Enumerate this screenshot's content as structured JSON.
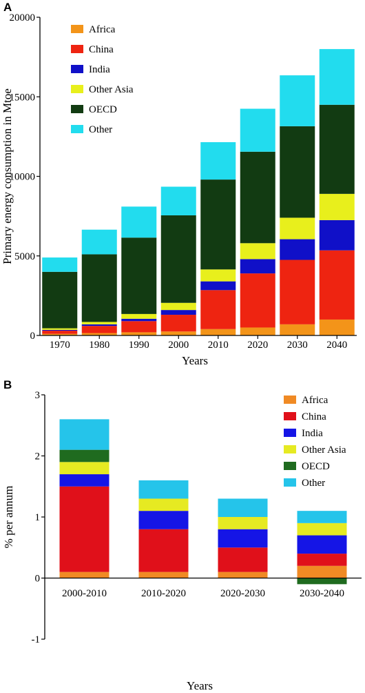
{
  "chart_data": [
    {
      "type": "bar",
      "stacked": true,
      "panel_label": "A",
      "title": "",
      "xlabel": "Years",
      "ylabel": "Primary energy consumption in Mtoe",
      "ylim": [
        0,
        20000
      ],
      "yticks": [
        "0",
        "5000",
        "10000",
        "15000",
        "20000"
      ],
      "categories": [
        "1970",
        "1980",
        "1990",
        "2000",
        "2010",
        "2020",
        "2030",
        "2040"
      ],
      "legend_position": "top-left",
      "series": [
        {
          "name": "Africa",
          "color": "#f39419",
          "values": [
            100,
            150,
            200,
            250,
            400,
            500,
            700,
            1000
          ]
        },
        {
          "name": "China",
          "color": "#ee2411",
          "values": [
            200,
            450,
            700,
            1050,
            2450,
            3400,
            4050,
            4350
          ]
        },
        {
          "name": "India",
          "color": "#1010c8",
          "values": [
            50,
            100,
            150,
            300,
            550,
            900,
            1300,
            1900
          ]
        },
        {
          "name": "Other Asia",
          "color": "#e8ef1c",
          "values": [
            100,
            150,
            300,
            450,
            750,
            1000,
            1350,
            1650
          ]
        },
        {
          "name": "OECD",
          "color": "#123b12",
          "values": [
            3550,
            4250,
            4800,
            5500,
            5650,
            5750,
            5750,
            5600
          ]
        },
        {
          "name": "Other",
          "color": "#22dcee",
          "values": [
            900,
            1550,
            1950,
            1800,
            2350,
            2700,
            3200,
            3500
          ]
        }
      ]
    },
    {
      "type": "bar",
      "stacked": true,
      "panel_label": "B",
      "title": "",
      "xlabel": "Years",
      "ylabel": "% per annum",
      "ylim": [
        -1,
        3
      ],
      "yticks": [
        "-1",
        "0",
        "1",
        "2",
        "3"
      ],
      "categories": [
        "2000-2010",
        "2010-2020",
        "2020-2030",
        "2030-2040"
      ],
      "legend_position": "top-right",
      "series": [
        {
          "name": "Africa",
          "color": "#f08a24",
          "values": [
            0.1,
            0.1,
            0.1,
            0.2
          ]
        },
        {
          "name": "China",
          "color": "#e0101a",
          "values": [
            1.4,
            0.7,
            0.4,
            0.2
          ]
        },
        {
          "name": "India",
          "color": "#1515e6",
          "values": [
            0.2,
            0.3,
            0.3,
            0.3
          ]
        },
        {
          "name": "Other Asia",
          "color": "#e6ea22",
          "values": [
            0.2,
            0.2,
            0.2,
            0.2
          ]
        },
        {
          "name": "OECD",
          "color": "#1f6b1f",
          "values": [
            0.2,
            0.0,
            0.0,
            -0.1
          ]
        },
        {
          "name": "Other",
          "color": "#25c4ea",
          "values": [
            0.5,
            0.3,
            0.3,
            0.2
          ]
        }
      ]
    }
  ]
}
